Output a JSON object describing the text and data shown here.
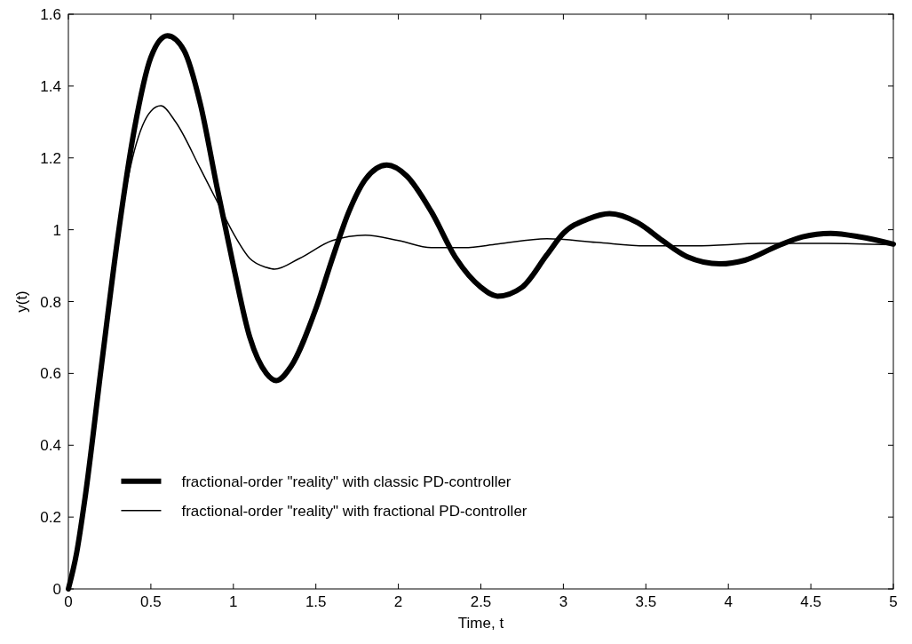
{
  "chart_data": {
    "type": "line",
    "xlabel": "Time, t",
    "ylabel": "y(t)",
    "xlim": [
      0,
      5
    ],
    "ylim": [
      0,
      1.6
    ],
    "xticks": [
      0,
      0.5,
      1,
      1.5,
      2,
      2.5,
      3,
      3.5,
      4,
      4.5,
      5
    ],
    "yticks": [
      0,
      0.2,
      0.4,
      0.6,
      0.8,
      1,
      1.2,
      1.4,
      1.6
    ],
    "grid": false,
    "legend": "bottom left",
    "marker": "none",
    "line_style": "solid",
    "series": [
      {
        "name": "fractional-order \"reality\" with classic PD-controller",
        "color": "#000000",
        "x": [
          0,
          0.05,
          0.1,
          0.2,
          0.3,
          0.4,
          0.5,
          0.6,
          0.7,
          0.8,
          0.9,
          1.0,
          1.1,
          1.2,
          1.26,
          1.35,
          1.5,
          1.6,
          1.7,
          1.8,
          1.93,
          2.05,
          2.2,
          2.35,
          2.5,
          2.6,
          2.75,
          2.9,
          3.0,
          3.15,
          3.28,
          3.45,
          3.6,
          3.75,
          3.95,
          4.1,
          4.3,
          4.45,
          4.62,
          4.8,
          5.0
        ],
        "values": [
          0,
          0.1,
          0.25,
          0.62,
          0.98,
          1.28,
          1.48,
          1.54,
          1.5,
          1.35,
          1.12,
          0.9,
          0.7,
          0.6,
          0.58,
          0.62,
          0.78,
          0.92,
          1.05,
          1.14,
          1.18,
          1.15,
          1.05,
          0.92,
          0.84,
          0.815,
          0.84,
          0.93,
          0.99,
          1.03,
          1.045,
          1.02,
          0.97,
          0.925,
          0.905,
          0.915,
          0.955,
          0.98,
          0.99,
          0.98,
          0.96
        ]
      },
      {
        "name": "fractional-order \"reality\" with fractional PD-controller",
        "color": "#000000",
        "x": [
          0,
          0.1,
          0.2,
          0.3,
          0.4,
          0.5,
          0.56,
          0.65,
          0.8,
          0.9,
          1.0,
          1.1,
          1.2,
          1.25,
          1.4,
          1.6,
          1.8,
          2.0,
          2.2,
          2.4,
          2.6,
          2.9,
          3.2,
          3.5,
          3.8,
          4.2,
          4.6,
          5.0
        ],
        "values": [
          0,
          0.25,
          0.62,
          0.98,
          1.22,
          1.33,
          1.345,
          1.3,
          1.17,
          1.08,
          0.99,
          0.92,
          0.895,
          0.89,
          0.92,
          0.97,
          0.985,
          0.97,
          0.95,
          0.95,
          0.96,
          0.975,
          0.965,
          0.955,
          0.955,
          0.962,
          0.962,
          0.958
        ]
      }
    ]
  }
}
